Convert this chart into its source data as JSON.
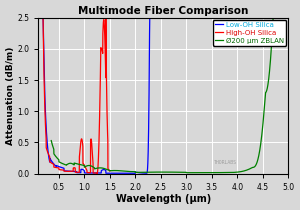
{
  "title": "Multimode Fiber Comparison",
  "xlabel": "Wavelength (μm)",
  "ylabel": "Attenuation (dB/m)",
  "xlim": [
    0.1,
    5.0
  ],
  "ylim": [
    0.0,
    2.5
  ],
  "xticks": [
    0.5,
    1.0,
    1.5,
    2.0,
    2.5,
    3.0,
    3.5,
    4.0,
    4.5,
    5.0
  ],
  "yticks": [
    0.0,
    0.5,
    1.0,
    1.5,
    2.0,
    2.5
  ],
  "bg_color": "#d8d8d8",
  "grid_color": "#ffffff",
  "legend_labels": [
    "Low-OH Silica",
    "High-OH Silica",
    "Ø200 μm ZBLAN"
  ],
  "line_colors": [
    "blue",
    "red",
    "green"
  ],
  "legend_text_colors": [
    "#00aadd",
    "#dd0000",
    "#006600"
  ],
  "watermark": "THORLABS"
}
